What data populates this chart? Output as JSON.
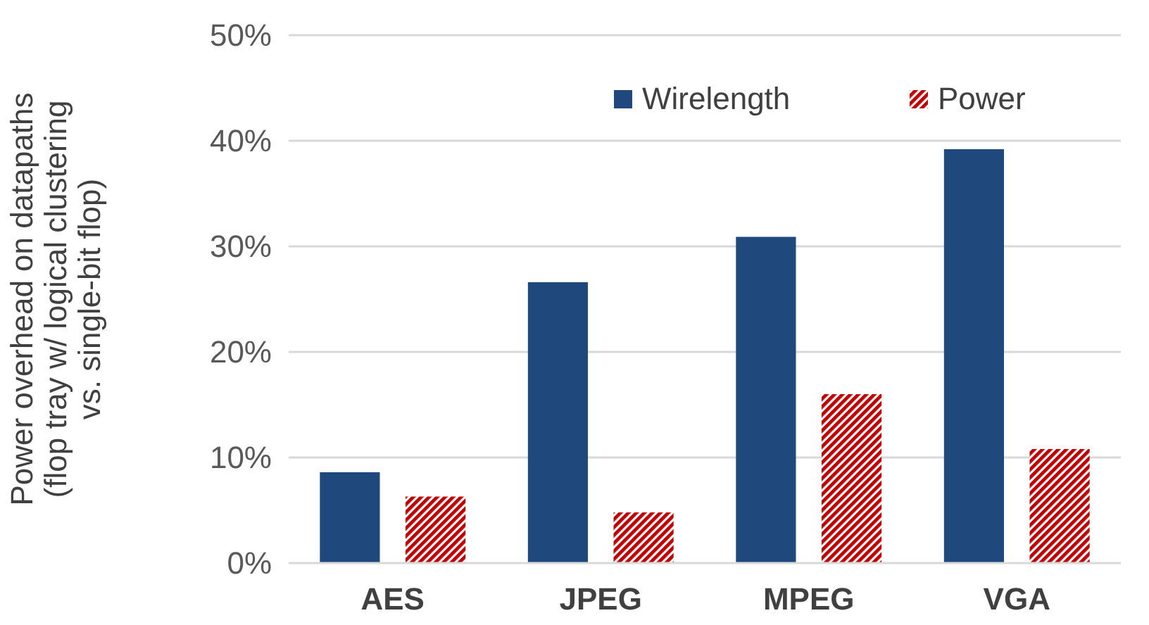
{
  "chart_data": {
    "type": "bar",
    "ylabel": "Power overhead on datapaths\n(flop tray w/ logical clustering\nvs. single-bit flop)",
    "categories": [
      "AES",
      "JPEG",
      "MPEG",
      "VGA"
    ],
    "series": [
      {
        "name": "Wirelength",
        "color": "#1f497d",
        "values": [
          8.6,
          26.6,
          30.9,
          39.2
        ]
      },
      {
        "name": "Power",
        "color": "#c00000",
        "values": [
          6.3,
          4.8,
          16.0,
          10.8
        ]
      }
    ],
    "ylim": [
      0,
      50
    ],
    "yticks": [
      {
        "value": 0,
        "label": "0%"
      },
      {
        "value": 10,
        "label": "10%"
      },
      {
        "value": 20,
        "label": "20%"
      },
      {
        "value": 30,
        "label": "30%"
      },
      {
        "value": 40,
        "label": "40%"
      },
      {
        "value": 50,
        "label": "50%"
      }
    ],
    "grid": "y",
    "legend": "top right"
  }
}
